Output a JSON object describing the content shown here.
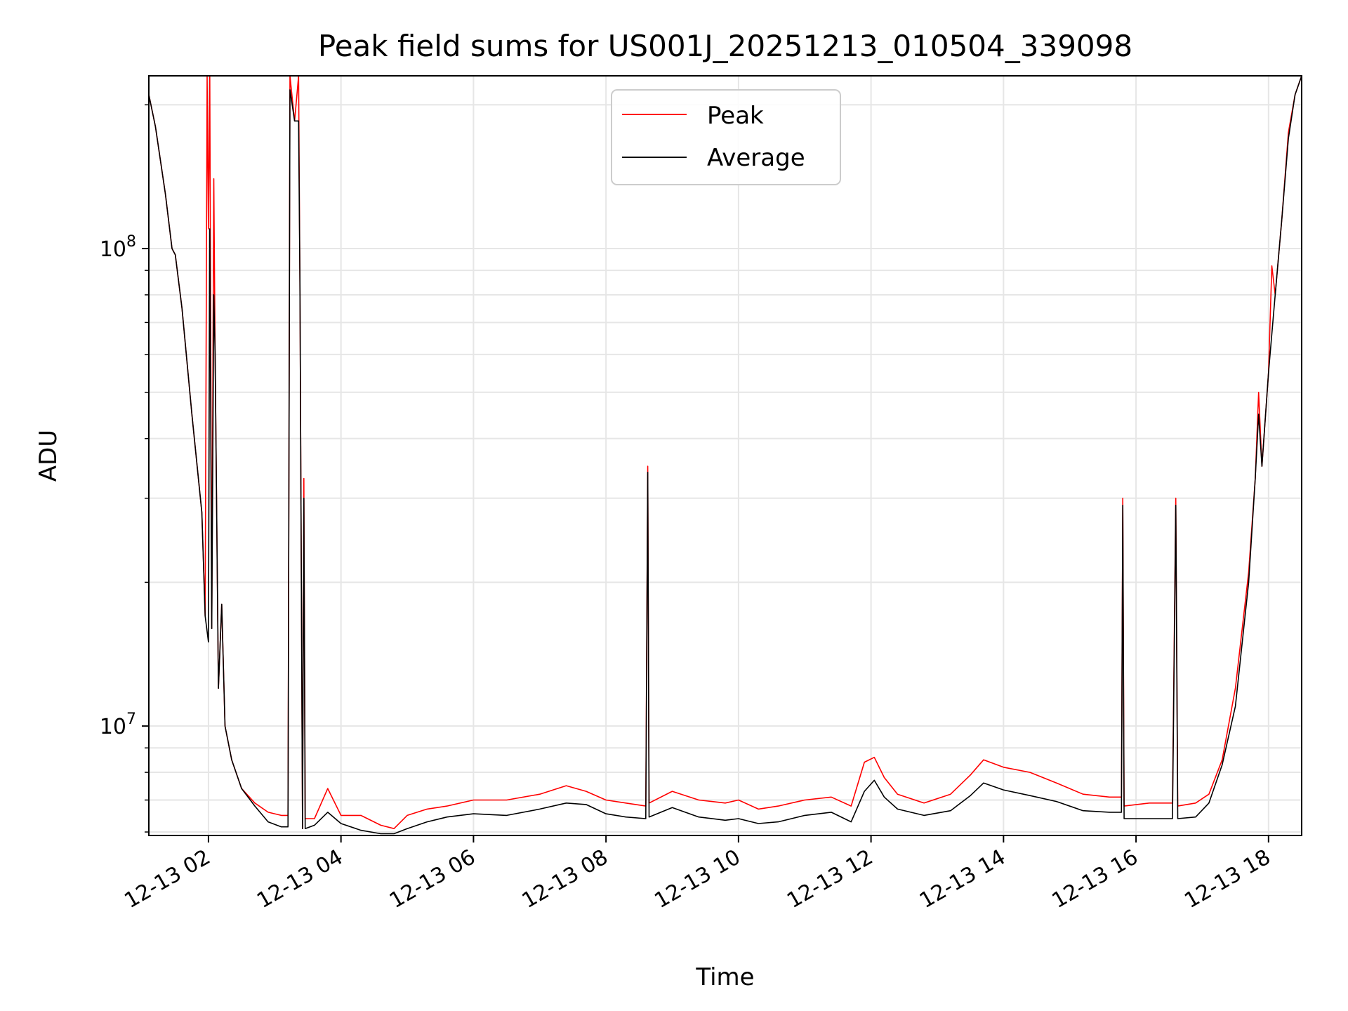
{
  "chart_data": {
    "type": "line",
    "title": "Peak field sums for US001J_20251213_010504_339098",
    "xlabel": "Time",
    "ylabel": "ADU",
    "yscale": "log",
    "ylim": [
      5900000,
      230000000
    ],
    "xlim": [
      1.1,
      18.5
    ],
    "grid": true,
    "legend": {
      "placement": "top-center",
      "entries": [
        "Peak",
        "Average"
      ]
    },
    "x_ticks": [
      {
        "value": 2,
        "label": "12-13 02"
      },
      {
        "value": 4,
        "label": "12-13 04"
      },
      {
        "value": 6,
        "label": "12-13 06"
      },
      {
        "value": 8,
        "label": "12-13 08"
      },
      {
        "value": 10,
        "label": "12-13 10"
      },
      {
        "value": 12,
        "label": "12-13 12"
      },
      {
        "value": 14,
        "label": "12-13 14"
      },
      {
        "value": 16,
        "label": "12-13 16"
      },
      {
        "value": 18,
        "label": "12-13 18"
      }
    ],
    "y_major_ticks": [
      {
        "value": 10000000,
        "base": "10",
        "exp": "7"
      },
      {
        "value": 100000000,
        "base": "10",
        "exp": "8"
      }
    ],
    "y_minor_ticks": [
      6000000,
      7000000,
      8000000,
      9000000,
      20000000,
      30000000,
      40000000,
      50000000,
      60000000,
      70000000,
      80000000,
      90000000,
      200000000
    ],
    "series": [
      {
        "name": "Average",
        "color": "#000000",
        "points": [
          [
            1.1,
            210000000
          ],
          [
            1.2,
            180000000
          ],
          [
            1.35,
            130000000
          ],
          [
            1.45,
            100000000
          ],
          [
            1.5,
            97000000
          ],
          [
            1.6,
            75000000
          ],
          [
            1.75,
            45000000
          ],
          [
            1.9,
            28000000
          ],
          [
            1.95,
            17000000
          ],
          [
            2.0,
            15000000
          ],
          [
            2.02,
            110000000
          ],
          [
            2.05,
            16000000
          ],
          [
            2.08,
            80000000
          ],
          [
            2.1,
            60000000
          ],
          [
            2.15,
            12000000
          ],
          [
            2.2,
            18000000
          ],
          [
            2.25,
            10000000
          ],
          [
            2.35,
            8500000
          ],
          [
            2.5,
            7400000
          ],
          [
            2.7,
            6800000
          ],
          [
            2.9,
            6300000
          ],
          [
            3.1,
            6150000
          ],
          [
            3.2,
            6150000
          ],
          [
            3.23,
            215000000
          ],
          [
            3.3,
            185000000
          ],
          [
            3.36,
            185000000
          ],
          [
            3.38,
            85000000
          ],
          [
            3.42,
            6100000
          ],
          [
            3.44,
            30000000
          ],
          [
            3.46,
            6100000
          ],
          [
            3.6,
            6200000
          ],
          [
            3.8,
            6600000
          ],
          [
            4.0,
            6250000
          ],
          [
            4.3,
            6050000
          ],
          [
            4.6,
            5950000
          ],
          [
            4.8,
            5950000
          ],
          [
            5.0,
            6100000
          ],
          [
            5.3,
            6300000
          ],
          [
            5.6,
            6450000
          ],
          [
            6.0,
            6550000
          ],
          [
            6.5,
            6500000
          ],
          [
            7.0,
            6700000
          ],
          [
            7.4,
            6900000
          ],
          [
            7.7,
            6850000
          ],
          [
            8.0,
            6550000
          ],
          [
            8.3,
            6450000
          ],
          [
            8.6,
            6400000
          ],
          [
            8.63,
            34000000
          ],
          [
            8.65,
            6450000
          ],
          [
            9.0,
            6750000
          ],
          [
            9.4,
            6450000
          ],
          [
            9.8,
            6350000
          ],
          [
            10.0,
            6400000
          ],
          [
            10.3,
            6250000
          ],
          [
            10.6,
            6300000
          ],
          [
            11.0,
            6500000
          ],
          [
            11.4,
            6600000
          ],
          [
            11.7,
            6300000
          ],
          [
            11.9,
            7300000
          ],
          [
            12.05,
            7700000
          ],
          [
            12.2,
            7100000
          ],
          [
            12.4,
            6700000
          ],
          [
            12.8,
            6500000
          ],
          [
            13.2,
            6650000
          ],
          [
            13.5,
            7150000
          ],
          [
            13.7,
            7600000
          ],
          [
            14.0,
            7350000
          ],
          [
            14.4,
            7150000
          ],
          [
            14.8,
            6950000
          ],
          [
            15.2,
            6650000
          ],
          [
            15.6,
            6600000
          ],
          [
            15.78,
            6600000
          ],
          [
            15.8,
            29000000
          ],
          [
            15.82,
            6400000
          ],
          [
            16.2,
            6400000
          ],
          [
            16.55,
            6400000
          ],
          [
            16.6,
            29000000
          ],
          [
            16.63,
            6400000
          ],
          [
            16.9,
            6450000
          ],
          [
            17.1,
            6900000
          ],
          [
            17.3,
            8300000
          ],
          [
            17.5,
            11000000
          ],
          [
            17.7,
            20000000
          ],
          [
            17.8,
            33000000
          ],
          [
            17.85,
            45000000
          ],
          [
            17.9,
            35000000
          ],
          [
            18.0,
            55000000
          ],
          [
            18.1,
            80000000
          ],
          [
            18.2,
            115000000
          ],
          [
            18.3,
            170000000
          ],
          [
            18.4,
            210000000
          ],
          [
            18.5,
            230000000
          ]
        ]
      },
      {
        "name": "Peak",
        "color": "#ff0000",
        "points": [
          [
            1.1,
            210000000
          ],
          [
            1.2,
            180000000
          ],
          [
            1.35,
            130000000
          ],
          [
            1.45,
            100000000
          ],
          [
            1.5,
            97000000
          ],
          [
            1.6,
            75000000
          ],
          [
            1.75,
            45000000
          ],
          [
            1.9,
            28000000
          ],
          [
            1.95,
            17000000
          ],
          [
            1.98,
            230000000
          ],
          [
            2.0,
            110000000
          ],
          [
            2.02,
            230000000
          ],
          [
            2.05,
            16000000
          ],
          [
            2.08,
            140000000
          ],
          [
            2.1,
            60000000
          ],
          [
            2.15,
            12000000
          ],
          [
            2.2,
            18000000
          ],
          [
            2.25,
            10000000
          ],
          [
            2.35,
            8500000
          ],
          [
            2.5,
            7400000
          ],
          [
            2.7,
            6900000
          ],
          [
            2.9,
            6600000
          ],
          [
            3.1,
            6500000
          ],
          [
            3.2,
            6500000
          ],
          [
            3.23,
            230000000
          ],
          [
            3.3,
            185000000
          ],
          [
            3.36,
            230000000
          ],
          [
            3.38,
            85000000
          ],
          [
            3.42,
            6100000
          ],
          [
            3.44,
            33000000
          ],
          [
            3.46,
            6400000
          ],
          [
            3.6,
            6400000
          ],
          [
            3.8,
            7400000
          ],
          [
            4.0,
            6500000
          ],
          [
            4.3,
            6500000
          ],
          [
            4.6,
            6200000
          ],
          [
            4.8,
            6100000
          ],
          [
            5.0,
            6500000
          ],
          [
            5.3,
            6700000
          ],
          [
            5.6,
            6800000
          ],
          [
            6.0,
            7000000
          ],
          [
            6.5,
            7000000
          ],
          [
            7.0,
            7200000
          ],
          [
            7.4,
            7500000
          ],
          [
            7.7,
            7300000
          ],
          [
            8.0,
            7000000
          ],
          [
            8.3,
            6900000
          ],
          [
            8.6,
            6800000
          ],
          [
            8.63,
            35000000
          ],
          [
            8.65,
            6900000
          ],
          [
            9.0,
            7300000
          ],
          [
            9.4,
            7000000
          ],
          [
            9.8,
            6900000
          ],
          [
            10.0,
            7000000
          ],
          [
            10.3,
            6700000
          ],
          [
            10.6,
            6800000
          ],
          [
            11.0,
            7000000
          ],
          [
            11.4,
            7100000
          ],
          [
            11.7,
            6800000
          ],
          [
            11.9,
            8400000
          ],
          [
            12.05,
            8600000
          ],
          [
            12.2,
            7800000
          ],
          [
            12.4,
            7200000
          ],
          [
            12.8,
            6900000
          ],
          [
            13.2,
            7200000
          ],
          [
            13.5,
            7900000
          ],
          [
            13.7,
            8500000
          ],
          [
            14.0,
            8200000
          ],
          [
            14.4,
            8000000
          ],
          [
            14.8,
            7600000
          ],
          [
            15.2,
            7200000
          ],
          [
            15.6,
            7100000
          ],
          [
            15.78,
            7100000
          ],
          [
            15.8,
            30000000
          ],
          [
            15.82,
            6800000
          ],
          [
            16.2,
            6900000
          ],
          [
            16.55,
            6900000
          ],
          [
            16.6,
            30000000
          ],
          [
            16.63,
            6800000
          ],
          [
            16.9,
            6900000
          ],
          [
            17.1,
            7200000
          ],
          [
            17.3,
            8500000
          ],
          [
            17.5,
            12000000
          ],
          [
            17.7,
            21000000
          ],
          [
            17.8,
            33000000
          ],
          [
            17.85,
            50000000
          ],
          [
            17.9,
            35000000
          ],
          [
            18.0,
            55000000
          ],
          [
            18.05,
            92000000
          ],
          [
            18.1,
            80000000
          ],
          [
            18.2,
            115000000
          ],
          [
            18.3,
            175000000
          ],
          [
            18.4,
            210000000
          ],
          [
            18.5,
            230000000
          ]
        ]
      }
    ]
  }
}
